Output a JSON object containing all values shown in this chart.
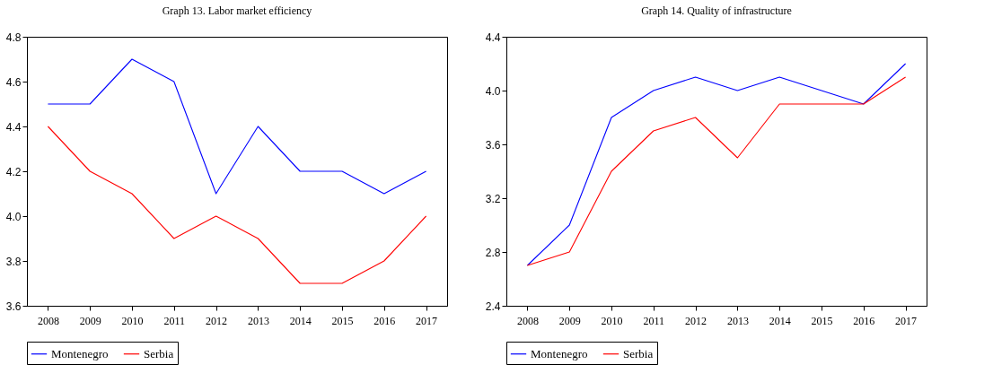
{
  "chart_data": [
    {
      "type": "line",
      "title": "Graph 13. Labor market efficiency",
      "categories": [
        "2008",
        "2009",
        "2010",
        "2011",
        "2012",
        "2013",
        "2014",
        "2015",
        "2016",
        "2017"
      ],
      "ylim": [
        3.6,
        4.8
      ],
      "yticks": [
        3.6,
        3.8,
        {
          "value": 4,
          "label": "4.0"
        },
        4.2,
        4.4,
        4.6,
        4.8
      ],
      "grid": false,
      "legend": "bottom",
      "series": [
        {
          "name": "Montenegro",
          "color": "#0000ff",
          "values": [
            4.5,
            4.5,
            4.7,
            4.6,
            4.1,
            4.4,
            4.2,
            4.2,
            4.1,
            4.2
          ]
        },
        {
          "name": "Serbia",
          "color": "#ff0000",
          "values": [
            4.4,
            4.2,
            4.1,
            3.9,
            4.0,
            3.9,
            3.7,
            3.7,
            3.8,
            4.0
          ]
        }
      ]
    },
    {
      "type": "line",
      "title": "Graph 14. Quality of infrastructure",
      "categories": [
        "2008",
        "2009",
        "2010",
        "2011",
        "2012",
        "2013",
        "2014",
        "2015",
        "2016",
        "2017"
      ],
      "ylim": [
        2.4,
        4.4
      ],
      "yticks": [
        2.4,
        2.8,
        3.2,
        3.6,
        {
          "value": 4,
          "label": "4.0"
        },
        4.4
      ],
      "grid": false,
      "legend": "bottom",
      "series": [
        {
          "name": "Montenegro",
          "color": "#0000ff",
          "values": [
            2.7,
            3.0,
            3.8,
            4.0,
            4.1,
            4.0,
            4.1,
            4.0,
            3.9,
            4.2
          ]
        },
        {
          "name": "Serbia",
          "color": "#ff0000",
          "values": [
            2.7,
            2.8,
            3.4,
            3.7,
            3.8,
            3.5,
            3.9,
            3.9,
            3.9,
            4.1
          ]
        }
      ]
    }
  ]
}
